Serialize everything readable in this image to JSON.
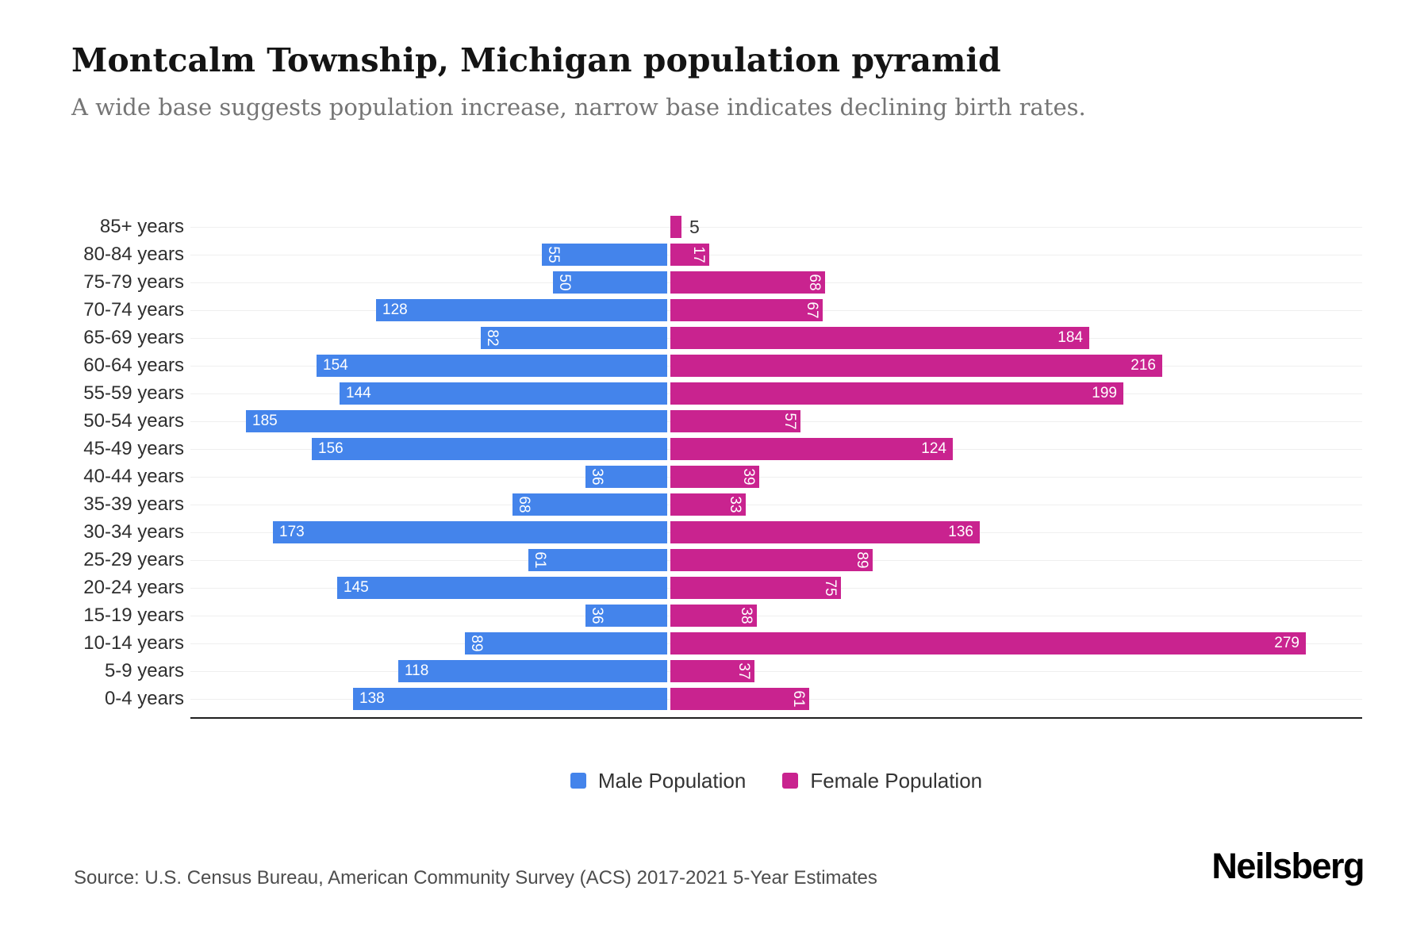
{
  "page": {
    "title": "Montcalm Township, Michigan population pyramid",
    "subtitle": "A wide base suggests population increase, narrow base indicates declining birth rates.",
    "source": "Source: U.S. Census Bureau, American Community Survey (ACS) 2017-2021 5-Year Estimates",
    "brand": "Neilsberg"
  },
  "legend": {
    "male_label": "Male Population",
    "female_label": "Female Population"
  },
  "colors": {
    "male": "#4484EB",
    "female": "#C9238F",
    "axis_line": "#1f1f1f",
    "grid_line": "#efefef",
    "value_label_inside": "#ffffff",
    "value_label_outside": "#333333",
    "category_label": "#2f2f2f",
    "title": "#141414",
    "subtitle": "#757575",
    "source": "#4d4d4d"
  },
  "chart_data": {
    "type": "bar",
    "variant": "population-pyramid",
    "title": "Montcalm Township, Michigan population pyramid",
    "categories": [
      "85+ years",
      "80-84 years",
      "75-79 years",
      "70-74 years",
      "65-69 years",
      "60-64 years",
      "55-59 years",
      "50-54 years",
      "45-49 years",
      "40-44 years",
      "35-39 years",
      "30-34 years",
      "25-29 years",
      "20-24 years",
      "15-19 years",
      "10-14 years",
      "5-9 years",
      "0-4 years"
    ],
    "series": [
      {
        "name": "Male Population",
        "side": "left",
        "color": "#4484EB",
        "values": [
          0,
          55,
          50,
          128,
          82,
          154,
          144,
          185,
          156,
          36,
          68,
          173,
          61,
          145,
          36,
          89,
          118,
          138
        ]
      },
      {
        "name": "Female Population",
        "side": "right",
        "color": "#C9238F",
        "values": [
          5,
          17,
          68,
          67,
          184,
          216,
          199,
          57,
          124,
          39,
          33,
          136,
          89,
          75,
          38,
          279,
          37,
          61
        ]
      }
    ],
    "value_label_rules": "white labels inside outer end of bar; rotated 90deg when value < 100; dark label outside bar when value < 10",
    "axis_range_left_max": 210,
    "axis_range_right_max": 304,
    "grid": "faint horizontal line per category row",
    "legend_position": "bottom-center"
  }
}
